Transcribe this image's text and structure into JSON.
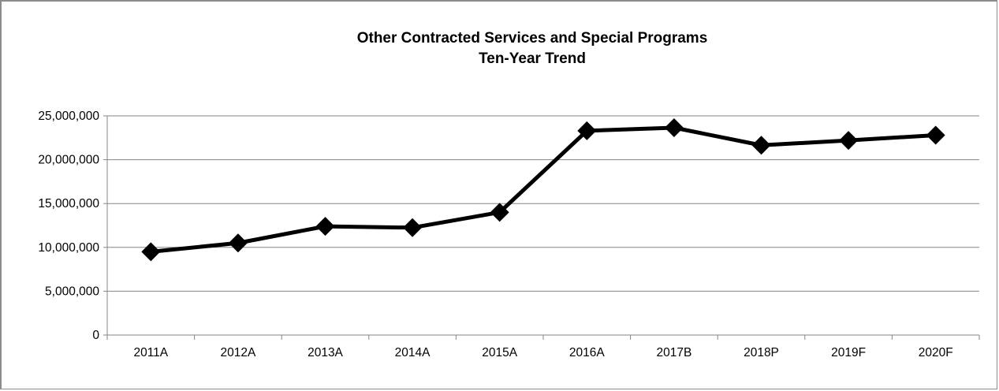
{
  "chart_data": {
    "type": "line",
    "title": "Other Contracted Services and Special Programs",
    "subtitle": "Ten-Year Trend",
    "xlabel": "",
    "ylabel": "",
    "categories": [
      "2011A",
      "2012A",
      "2013A",
      "2014A",
      "2015A",
      "2016A",
      "2017B",
      "2018P",
      "2019F",
      "2020F"
    ],
    "series": [
      {
        "values": [
          9500000,
          10500000,
          12400000,
          12250000,
          14000000,
          23300000,
          23650000,
          21650000,
          22200000,
          22800000
        ],
        "color": "#000000",
        "marker": "diamond"
      }
    ],
    "ylim": [
      0,
      25000000
    ],
    "yticks": [
      0,
      5000000,
      10000000,
      15000000,
      20000000,
      25000000
    ],
    "ytick_labels": [
      "0",
      "5,000,000",
      "10,000,000",
      "15,000,000",
      "20,000,000",
      "25,000,000"
    ],
    "grid": true,
    "legend": "none"
  }
}
